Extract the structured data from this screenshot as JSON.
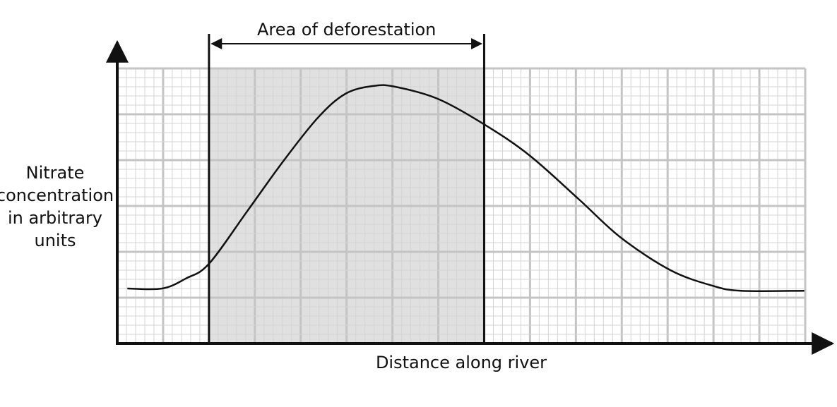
{
  "chart_data": {
    "type": "line",
    "xlabel": "Distance along river",
    "ylabel_lines": [
      "Nitrate",
      "concentration",
      "in arbitrary",
      "units"
    ],
    "region": {
      "label": "Area of deforestation",
      "x": [
        2,
        8
      ],
      "color": "#e0e0e0"
    },
    "xlim": [
      0,
      15
    ],
    "ylim": [
      0,
      6
    ],
    "grid": true,
    "series": [
      {
        "color": "#111111",
        "x": [
          0.22,
          0.98,
          1.5,
          2.0,
          2.83,
          3.6,
          4.37,
          4.98,
          5.6,
          6.06,
          6.98,
          8.0,
          8.98,
          10.06,
          10.98,
          12.06,
          12.98,
          13.6,
          14.98
        ],
        "values": [
          1.2,
          1.2,
          1.42,
          1.74,
          2.88,
          3.95,
          4.92,
          5.45,
          5.62,
          5.6,
          5.34,
          4.78,
          4.11,
          3.15,
          2.31,
          1.6,
          1.26,
          1.15,
          1.15
        ]
      }
    ]
  }
}
